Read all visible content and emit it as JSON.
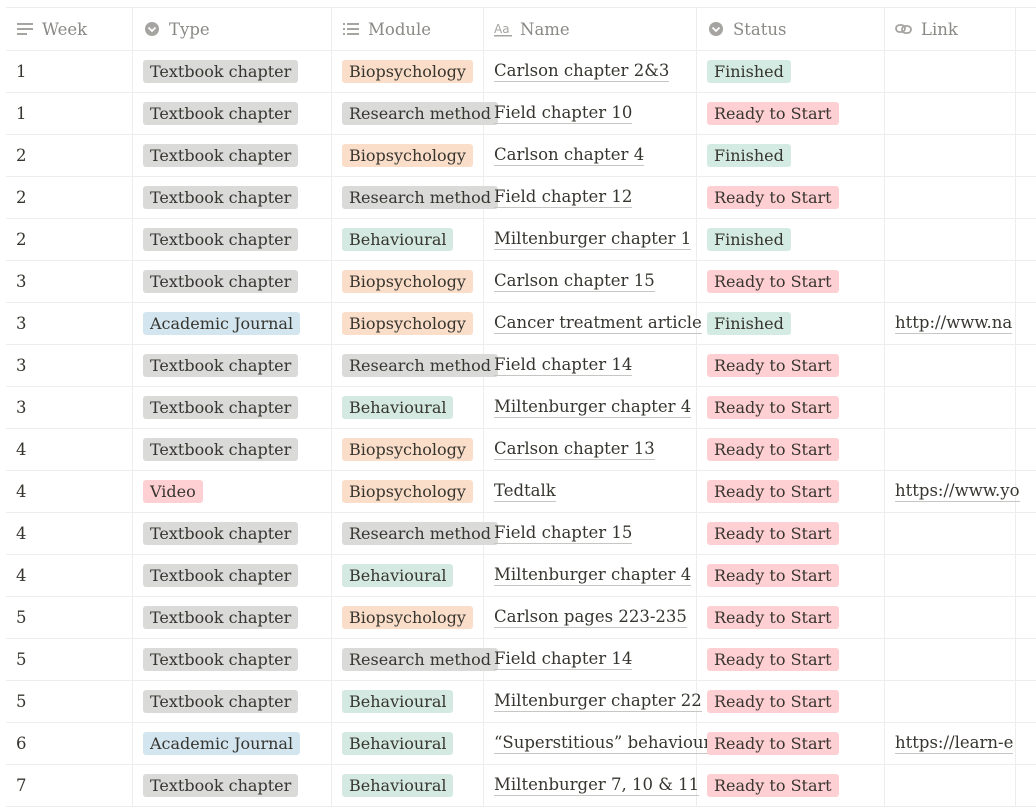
{
  "columns": [
    {
      "label": "Week",
      "icon": "text-lines-icon"
    },
    {
      "label": "Type",
      "icon": "select-circle-icon"
    },
    {
      "label": "Module",
      "icon": "list-icon"
    },
    {
      "label": "Name",
      "icon": "title-aa-icon"
    },
    {
      "label": "Status",
      "icon": "select-circle-icon"
    },
    {
      "label": "Link",
      "icon": "link-icon"
    }
  ],
  "colors": {
    "gray": "#dadad8",
    "blue": "#d3e5ef",
    "red": "#ffd0d3",
    "orange": "#fadec9",
    "green": "#d3e9e2"
  },
  "rows": [
    {
      "week": "1",
      "type": "Textbook chapter",
      "module": "Biopsychology",
      "name": "Carlson chapter 2&3",
      "status": "Finished",
      "link": ""
    },
    {
      "week": "1",
      "type": "Textbook chapter",
      "module": "Research method",
      "name": "Field chapter 10",
      "status": "Ready to Start",
      "link": ""
    },
    {
      "week": "2",
      "type": "Textbook chapter",
      "module": "Biopsychology",
      "name": "Carlson chapter 4",
      "status": "Finished",
      "link": ""
    },
    {
      "week": "2",
      "type": "Textbook chapter",
      "module": "Research method",
      "name": "Field chapter 12",
      "status": "Ready to Start",
      "link": ""
    },
    {
      "week": "2",
      "type": "Textbook chapter",
      "module": "Behavioural",
      "name": "Miltenburger chapter 1",
      "status": "Finished",
      "link": ""
    },
    {
      "week": "3",
      "type": "Textbook chapter",
      "module": "Biopsychology",
      "name": "Carlson chapter 15",
      "status": "Ready to Start",
      "link": ""
    },
    {
      "week": "3",
      "type": "Academic Journal",
      "module": "Biopsychology",
      "name": "Cancer treatment article",
      "status": "Finished",
      "link": "http://www.na"
    },
    {
      "week": "3",
      "type": "Textbook chapter",
      "module": "Research method",
      "name": "Field chapter 14",
      "status": "Ready to Start",
      "link": ""
    },
    {
      "week": "3",
      "type": "Textbook chapter",
      "module": "Behavioural",
      "name": "Miltenburger chapter 4",
      "status": "Ready to Start",
      "link": ""
    },
    {
      "week": "4",
      "type": "Textbook chapter",
      "module": "Biopsychology",
      "name": "Carlson chapter 13",
      "status": "Ready to Start",
      "link": ""
    },
    {
      "week": "4",
      "type": "Video",
      "module": "Biopsychology",
      "name": "Tedtalk",
      "status": "Ready to Start",
      "link": "https://www.yo"
    },
    {
      "week": "4",
      "type": "Textbook chapter",
      "module": "Research method",
      "name": "Field chapter 15",
      "status": "Ready to Start",
      "link": ""
    },
    {
      "week": "4",
      "type": "Textbook chapter",
      "module": "Behavioural",
      "name": "Miltenburger chapter 4",
      "status": "Ready to Start",
      "link": ""
    },
    {
      "week": "5",
      "type": "Textbook chapter",
      "module": "Biopsychology",
      "name": "Carlson pages 223-235",
      "status": "Ready to Start",
      "link": ""
    },
    {
      "week": "5",
      "type": "Textbook chapter",
      "module": "Research method",
      "name": "Field chapter 14",
      "status": "Ready to Start",
      "link": ""
    },
    {
      "week": "5",
      "type": "Textbook chapter",
      "module": "Behavioural",
      "name": "Miltenburger chapter 22",
      "status": "Ready to Start",
      "link": ""
    },
    {
      "week": "6",
      "type": "Academic Journal",
      "module": "Behavioural",
      "name": "“Superstitious” behaviour",
      "status": "Ready to Start",
      "link": "https://learn-e"
    },
    {
      "week": "7",
      "type": "Textbook chapter",
      "module": "Behavioural",
      "name": "Miltenburger 7, 10 & 11",
      "status": "Ready to Start",
      "link": ""
    }
  ]
}
